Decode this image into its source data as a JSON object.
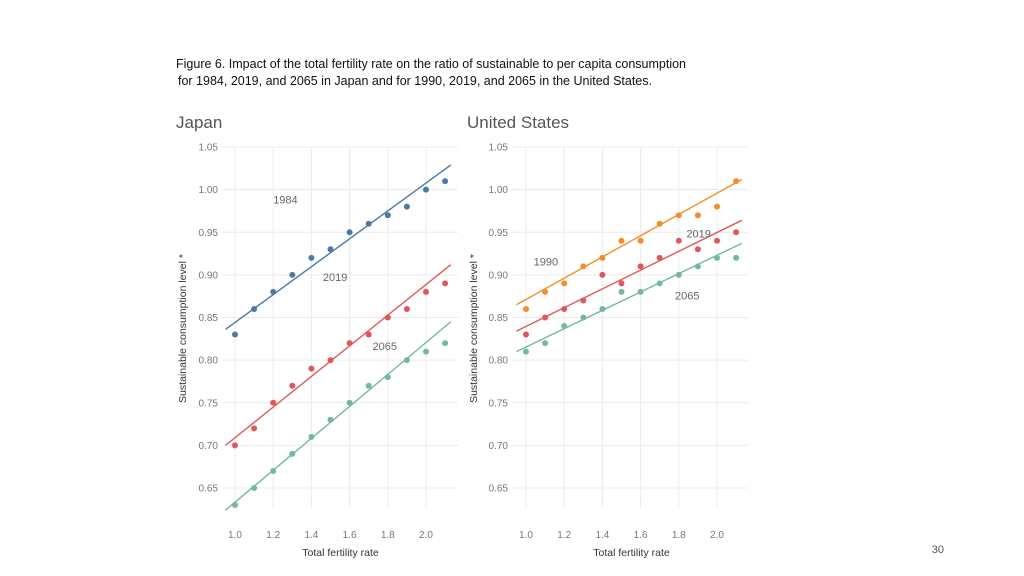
{
  "caption": {
    "line1": "Figure 6.  Impact of the total fertility rate on the ratio of sustainable to per capita consumption",
    "line2": "for 1984, 2019, and 2065 in Japan and for 1990, 2019, and 2065 in the United States."
  },
  "page_number": "30",
  "chart_data": [
    {
      "type": "scatter",
      "title": "Japan",
      "xlabel": "Total fertility rate",
      "ylabel": "Sustainable consumption level *",
      "xlim": [
        0.95,
        2.15
      ],
      "ylim": [
        0.62,
        1.05
      ],
      "x_ticks": [
        "1.0",
        "1.2",
        "1.4",
        "1.6",
        "1.8",
        "2.0"
      ],
      "y_ticks": [
        "1.05",
        "1.00",
        "0.95",
        "0.90",
        "0.85",
        "0.80",
        "0.75",
        "0.70",
        "0.65"
      ],
      "x": [
        1.0,
        1.1,
        1.2,
        1.3,
        1.4,
        1.5,
        1.6,
        1.7,
        1.8,
        1.9,
        2.0,
        2.1
      ],
      "series": [
        {
          "name": "1984",
          "color": "#4e79a7",
          "label_at": [
            1.2,
            0.984
          ],
          "values": [
            0.83,
            0.86,
            0.88,
            0.9,
            0.92,
            0.93,
            0.95,
            0.96,
            0.97,
            0.98,
            1.0,
            1.01
          ],
          "trend": [
            [
              0.95,
              0.836
            ],
            [
              2.13,
              1.029
            ]
          ]
        },
        {
          "name": "2019",
          "color": "#e15759",
          "label_at": [
            1.46,
            0.893
          ],
          "values": [
            0.7,
            0.72,
            0.75,
            0.77,
            0.79,
            0.8,
            0.82,
            0.83,
            0.85,
            0.86,
            0.88,
            0.89
          ],
          "trend": [
            [
              0.95,
              0.7
            ],
            [
              2.13,
              0.912
            ]
          ]
        },
        {
          "name": "2065",
          "color": "#76b7a3",
          "label_at": [
            1.72,
            0.812
          ],
          "values": [
            0.63,
            0.65,
            0.67,
            0.69,
            0.71,
            0.73,
            0.75,
            0.77,
            0.78,
            0.8,
            0.81,
            0.82
          ],
          "trend": [
            [
              0.95,
              0.624
            ],
            [
              2.13,
              0.845
            ]
          ]
        }
      ]
    },
    {
      "type": "scatter",
      "title": "United States",
      "xlabel": "Total fertility rate",
      "ylabel": "Sustainable consumption level *",
      "xlim": [
        0.95,
        2.15
      ],
      "ylim": [
        0.62,
        1.05
      ],
      "x_ticks": [
        "1.0",
        "1.2",
        "1.4",
        "1.6",
        "1.8",
        "2.0"
      ],
      "y_ticks": [
        "1.05",
        "1.00",
        "0.95",
        "0.90",
        "0.85",
        "0.80",
        "0.75",
        "0.70",
        "0.65"
      ],
      "x": [
        1.0,
        1.1,
        1.2,
        1.3,
        1.4,
        1.5,
        1.6,
        1.7,
        1.8,
        1.9,
        2.0,
        2.1
      ],
      "series": [
        {
          "name": "1990",
          "color": "#f28e2b",
          "label_at": [
            1.04,
            0.911
          ],
          "values": [
            0.86,
            0.88,
            0.89,
            0.91,
            0.92,
            0.94,
            0.94,
            0.96,
            0.97,
            0.97,
            0.98,
            1.01
          ],
          "trend": [
            [
              0.95,
              0.865
            ],
            [
              2.13,
              1.012
            ]
          ]
        },
        {
          "name": "2019",
          "color": "#e15759",
          "label_at": [
            1.84,
            0.944
          ],
          "values": [
            0.83,
            0.85,
            0.86,
            0.87,
            0.9,
            0.89,
            0.91,
            0.92,
            0.94,
            0.93,
            0.94,
            0.95
          ],
          "trend": [
            [
              0.95,
              0.834
            ],
            [
              2.13,
              0.964
            ]
          ]
        },
        {
          "name": "2065",
          "color": "#76b7a3",
          "label_at": [
            1.78,
            0.871
          ],
          "values": [
            0.81,
            0.82,
            0.84,
            0.85,
            0.86,
            0.88,
            0.88,
            0.89,
            0.9,
            0.91,
            0.92,
            0.92
          ],
          "trend": [
            [
              0.95,
              0.81
            ],
            [
              2.13,
              0.937
            ]
          ]
        }
      ]
    }
  ]
}
